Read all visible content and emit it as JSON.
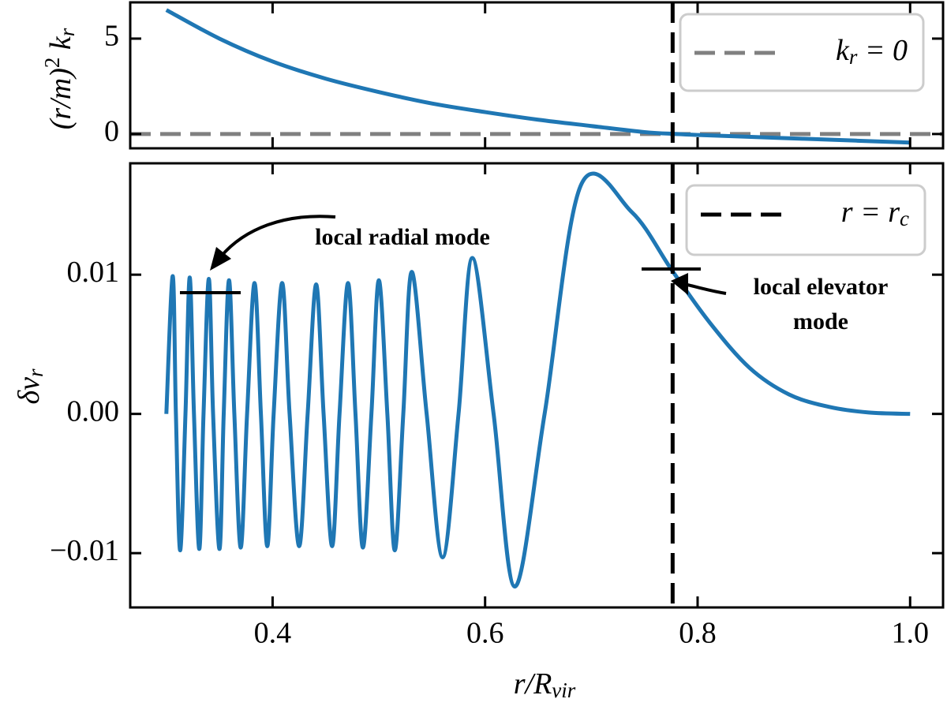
{
  "chart_data": [
    {
      "type": "line",
      "ylabel": [
        {
          "t": "(r/m)"
        },
        {
          "sup": "2"
        },
        {
          "t": " k"
        },
        {
          "sub": "r"
        }
      ],
      "xlim": [
        0.266,
        1.031
      ],
      "xticks": [
        0.4,
        0.6,
        0.8,
        {
          "value": 1,
          "label": "1.0"
        }
      ],
      "ylim": [
        -0.75,
        6.9
      ],
      "yticks": [
        0,
        5
      ],
      "series": [
        {
          "color": "#1f77b4",
          "x": [
            0.3,
            0.35,
            0.4,
            0.45,
            0.5,
            0.55,
            0.6,
            0.65,
            0.7,
            0.75,
            0.78,
            0.8,
            0.85,
            0.9,
            0.95,
            1.0
          ],
          "values": [
            6.5,
            5.0,
            3.8,
            2.9,
            2.2,
            1.6,
            1.15,
            0.75,
            0.42,
            0.1,
            0,
            -0.05,
            -0.15,
            -0.25,
            -0.35,
            -0.45
          ]
        }
      ],
      "hline": {
        "value": 0,
        "color": "#808080",
        "label": [
          {
            "t": "k"
          },
          {
            "sub": "r"
          },
          {
            "t": " = 0"
          }
        ]
      }
    },
    {
      "type": "line",
      "xlabel": [
        {
          "t": "r/R"
        },
        {
          "sub": "vir"
        }
      ],
      "ylabel": [
        {
          "t": "δv"
        },
        {
          "sub": "r"
        }
      ],
      "xlim": [
        0.266,
        1.031
      ],
      "xticks": [
        0.4,
        0.6,
        0.8,
        {
          "value": 1,
          "label": "1.0"
        }
      ],
      "ylim": [
        -0.0139,
        0.018
      ],
      "yticks": [
        {
          "value": -0.01,
          "label": "−0.01"
        },
        {
          "value": 0,
          "label": "0.00"
        },
        0.01
      ],
      "series": [
        {
          "color": "#1f77b4",
          "x": [
            0.3,
            0.306,
            0.309,
            0.313,
            0.318,
            0.322,
            0.326,
            0.331,
            0.335,
            0.34,
            0.344,
            0.35,
            0.354,
            0.359,
            0.364,
            0.37,
            0.376,
            0.383,
            0.389,
            0.395,
            0.401,
            0.409,
            0.416,
            0.425,
            0.433,
            0.441,
            0.448,
            0.456,
            0.463,
            0.471,
            0.478,
            0.485,
            0.493,
            0.5,
            0.508,
            0.515,
            0.523,
            0.531,
            0.545,
            0.56,
            0.575,
            0.588,
            0.608,
            0.628,
            0.656,
            0.69,
            0.738,
            0.776,
            0.812,
            0.849,
            0.886,
            0.924,
            0.961,
            1.0
          ],
          "values": [
            0,
            0.0099,
            0,
            -0.0098,
            0,
            0.0098,
            0,
            -0.0097,
            0,
            0.0097,
            0,
            -0.0097,
            0,
            0.0096,
            0,
            -0.0096,
            0,
            0.0094,
            0,
            -0.0095,
            0,
            0.0094,
            0,
            -0.0095,
            0,
            0.0093,
            0,
            -0.0095,
            0,
            0.0094,
            0,
            -0.0096,
            0,
            0.0096,
            0,
            -0.0098,
            0,
            0.0102,
            0,
            -0.0103,
            0,
            0.0112,
            0,
            -0.0124,
            0,
            0.0164,
            0.0145,
            0.0103,
            0.0065,
            0.0033,
            0.0014,
            0.0005,
            0.0001,
            0
          ]
        }
      ],
      "vline": {
        "value": 0.7765,
        "color": "#000000",
        "label": [
          {
            "t": "r = r"
          },
          {
            "sub": "c"
          }
        ]
      },
      "annotations": [
        "local radial mode",
        "local elevator",
        "mode"
      ]
    }
  ]
}
